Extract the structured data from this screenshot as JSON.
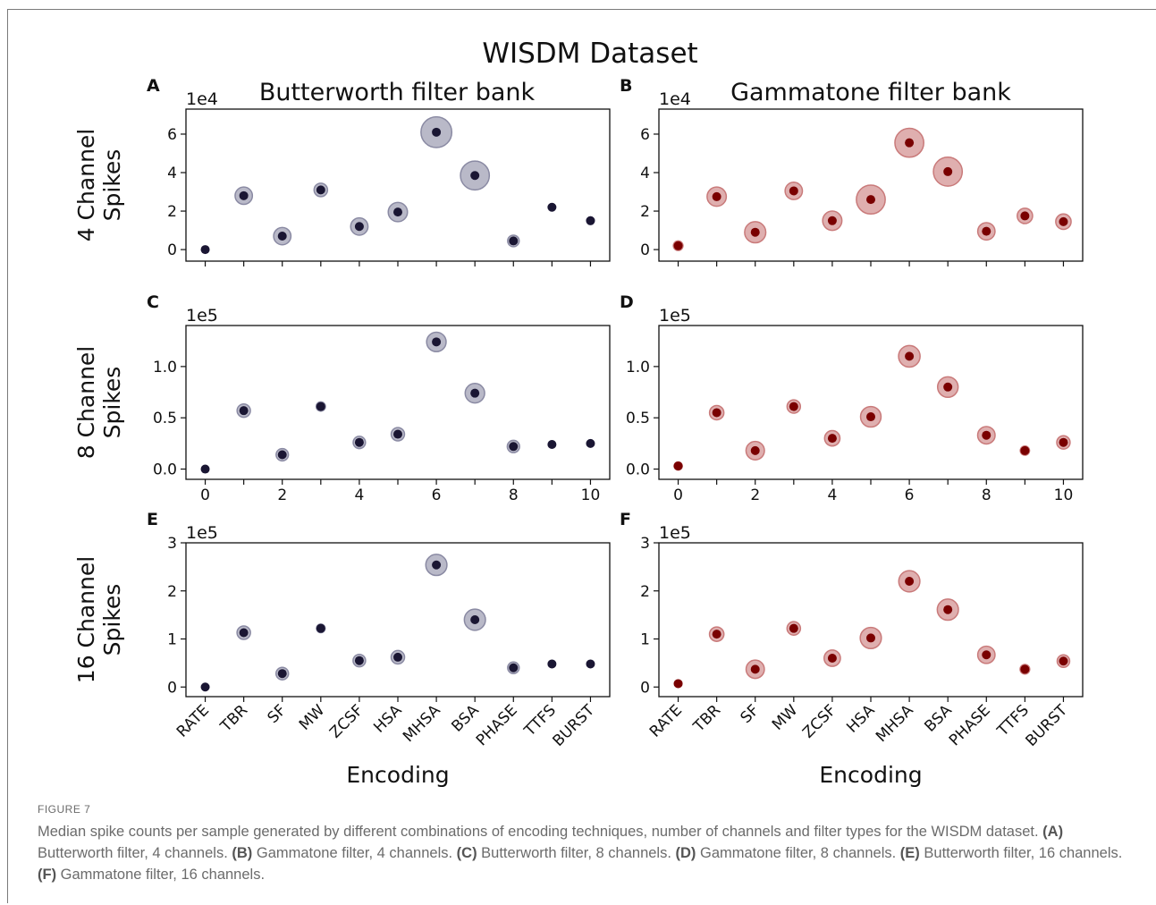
{
  "figure": {
    "title": "WISDM Dataset",
    "column_titles": [
      "Butterworth filter bank",
      "Gammatone filter bank"
    ],
    "row_labels": [
      [
        "4 Channel",
        "Spikes"
      ],
      [
        "8 Channel",
        "Spikes"
      ],
      [
        "16 Channel",
        "Spikes"
      ]
    ],
    "panel_letters": [
      "A",
      "B",
      "C",
      "D",
      "E",
      "F"
    ],
    "xlabel": "Encoding",
    "encodings": [
      "RATE",
      "TBR",
      "SF",
      "MW",
      "ZCSF",
      "HSA",
      "MHSA",
      "BSA",
      "PHASE",
      "TTFS",
      "BURST"
    ],
    "numeric_ticks": [
      "0",
      "2",
      "4",
      "6",
      "8",
      "10"
    ],
    "colors": {
      "butterworth_dot": "#1a1633",
      "butterworth_halo": "#8a8aa3",
      "gammatone_dot": "#7a0000",
      "gammatone_halo": "#c97a7a"
    }
  },
  "chart_data": [
    {
      "panel": "A",
      "type": "scatter",
      "filter": "Butterworth",
      "channels": 4,
      "x": [
        0,
        1,
        2,
        3,
        4,
        5,
        6,
        7,
        8,
        9,
        10
      ],
      "y": [
        0,
        2.8,
        0.7,
        3.1,
        1.2,
        1.95,
        6.1,
        3.85,
        0.45,
        2.2,
        1.5
      ],
      "spread": [
        0,
        0.9,
        0.9,
        0.7,
        0.9,
        1.0,
        1.6,
        1.5,
        0.6,
        0.3,
        0.4
      ],
      "scale": "1e4",
      "ylim": [
        -0.6,
        7.3
      ],
      "yticks": [
        "0",
        "2",
        "4",
        "6"
      ]
    },
    {
      "panel": "B",
      "type": "scatter",
      "filter": "Gammatone",
      "channels": 4,
      "x": [
        0,
        1,
        2,
        3,
        4,
        5,
        6,
        7,
        8,
        9,
        10
      ],
      "y": [
        0.2,
        2.75,
        0.9,
        3.05,
        1.5,
        2.6,
        5.55,
        4.05,
        0.95,
        1.75,
        1.45
      ],
      "spread": [
        0.5,
        1.0,
        1.1,
        0.9,
        1.0,
        1.5,
        1.5,
        1.5,
        0.9,
        0.8,
        0.8
      ],
      "scale": "1e4",
      "ylim": [
        -0.6,
        7.3
      ],
      "yticks": [
        "0",
        "2",
        "4",
        "6"
      ]
    },
    {
      "panel": "C",
      "type": "scatter",
      "filter": "Butterworth",
      "channels": 8,
      "x": [
        0,
        1,
        2,
        3,
        4,
        5,
        6,
        7,
        8,
        9,
        10
      ],
      "y": [
        0,
        0.57,
        0.14,
        0.61,
        0.26,
        0.34,
        1.24,
        0.74,
        0.22,
        0.24,
        0.25
      ],
      "spread": [
        0,
        0.13,
        0.12,
        0.09,
        0.12,
        0.13,
        0.19,
        0.19,
        0.12,
        0.04,
        0.06
      ],
      "scale": "1e5",
      "ylim": [
        -0.1,
        1.4
      ],
      "yticks": [
        "0.0",
        "0.5",
        "1.0"
      ]
    },
    {
      "panel": "D",
      "type": "scatter",
      "filter": "Gammatone",
      "channels": 8,
      "x": [
        0,
        1,
        2,
        3,
        4,
        5,
        6,
        7,
        8,
        9,
        10
      ],
      "y": [
        0.03,
        0.55,
        0.18,
        0.61,
        0.3,
        0.51,
        1.1,
        0.8,
        0.33,
        0.18,
        0.26
      ],
      "spread": [
        0.08,
        0.14,
        0.18,
        0.13,
        0.15,
        0.2,
        0.21,
        0.2,
        0.17,
        0.09,
        0.13
      ],
      "scale": "1e5",
      "ylim": [
        -0.1,
        1.4
      ],
      "yticks": [
        "0.0",
        "0.5",
        "1.0"
      ]
    },
    {
      "panel": "E",
      "type": "scatter",
      "filter": "Butterworth",
      "channels": 16,
      "x": [
        0,
        1,
        2,
        3,
        4,
        5,
        6,
        7,
        8,
        9,
        10
      ],
      "y": [
        0,
        1.13,
        0.28,
        1.22,
        0.55,
        0.62,
        2.54,
        1.4,
        0.4,
        0.48,
        0.48
      ],
      "spread": [
        0,
        0.28,
        0.26,
        0.18,
        0.26,
        0.28,
        0.44,
        0.44,
        0.24,
        0.08,
        0.08
      ],
      "scale": "1e5",
      "ylim": [
        -0.2,
        3.0
      ],
      "yticks": [
        "0",
        "1",
        "2",
        "3"
      ]
    },
    {
      "panel": "F",
      "type": "scatter",
      "filter": "Gammatone",
      "channels": 16,
      "x": [
        0,
        1,
        2,
        3,
        4,
        5,
        6,
        7,
        8,
        9,
        10
      ],
      "y": [
        0.07,
        1.1,
        0.37,
        1.22,
        0.6,
        1.02,
        2.2,
        1.61,
        0.67,
        0.37,
        0.54
      ],
      "spread": [
        0.16,
        0.3,
        0.38,
        0.28,
        0.34,
        0.44,
        0.44,
        0.44,
        0.36,
        0.2,
        0.26
      ],
      "scale": "1e5",
      "ylim": [
        -0.2,
        3.0
      ],
      "yticks": [
        "0",
        "1",
        "2",
        "3"
      ]
    }
  ],
  "caption": {
    "label": "FIGURE 7",
    "parts": [
      {
        "t": "Median spike counts per sample generated by different combinations of encoding techniques, number of channels and filter types for the WISDM dataset. ",
        "b": false
      },
      {
        "t": "(A)",
        "b": true
      },
      {
        "t": " Butterworth filter, 4 channels. ",
        "b": false
      },
      {
        "t": "(B)",
        "b": true
      },
      {
        "t": " Gammatone filter, 4 channels. ",
        "b": false
      },
      {
        "t": "(C)",
        "b": true
      },
      {
        "t": " Butterworth filter, 8 channels. ",
        "b": false
      },
      {
        "t": "(D)",
        "b": true
      },
      {
        "t": " Gammatone filter, 8 channels. ",
        "b": false
      },
      {
        "t": "(E)",
        "b": true
      },
      {
        "t": " Butterworth filter, 16 channels. ",
        "b": false
      },
      {
        "t": "(F)",
        "b": true
      },
      {
        "t": " Gammatone filter, 16 channels.",
        "b": false
      }
    ]
  }
}
